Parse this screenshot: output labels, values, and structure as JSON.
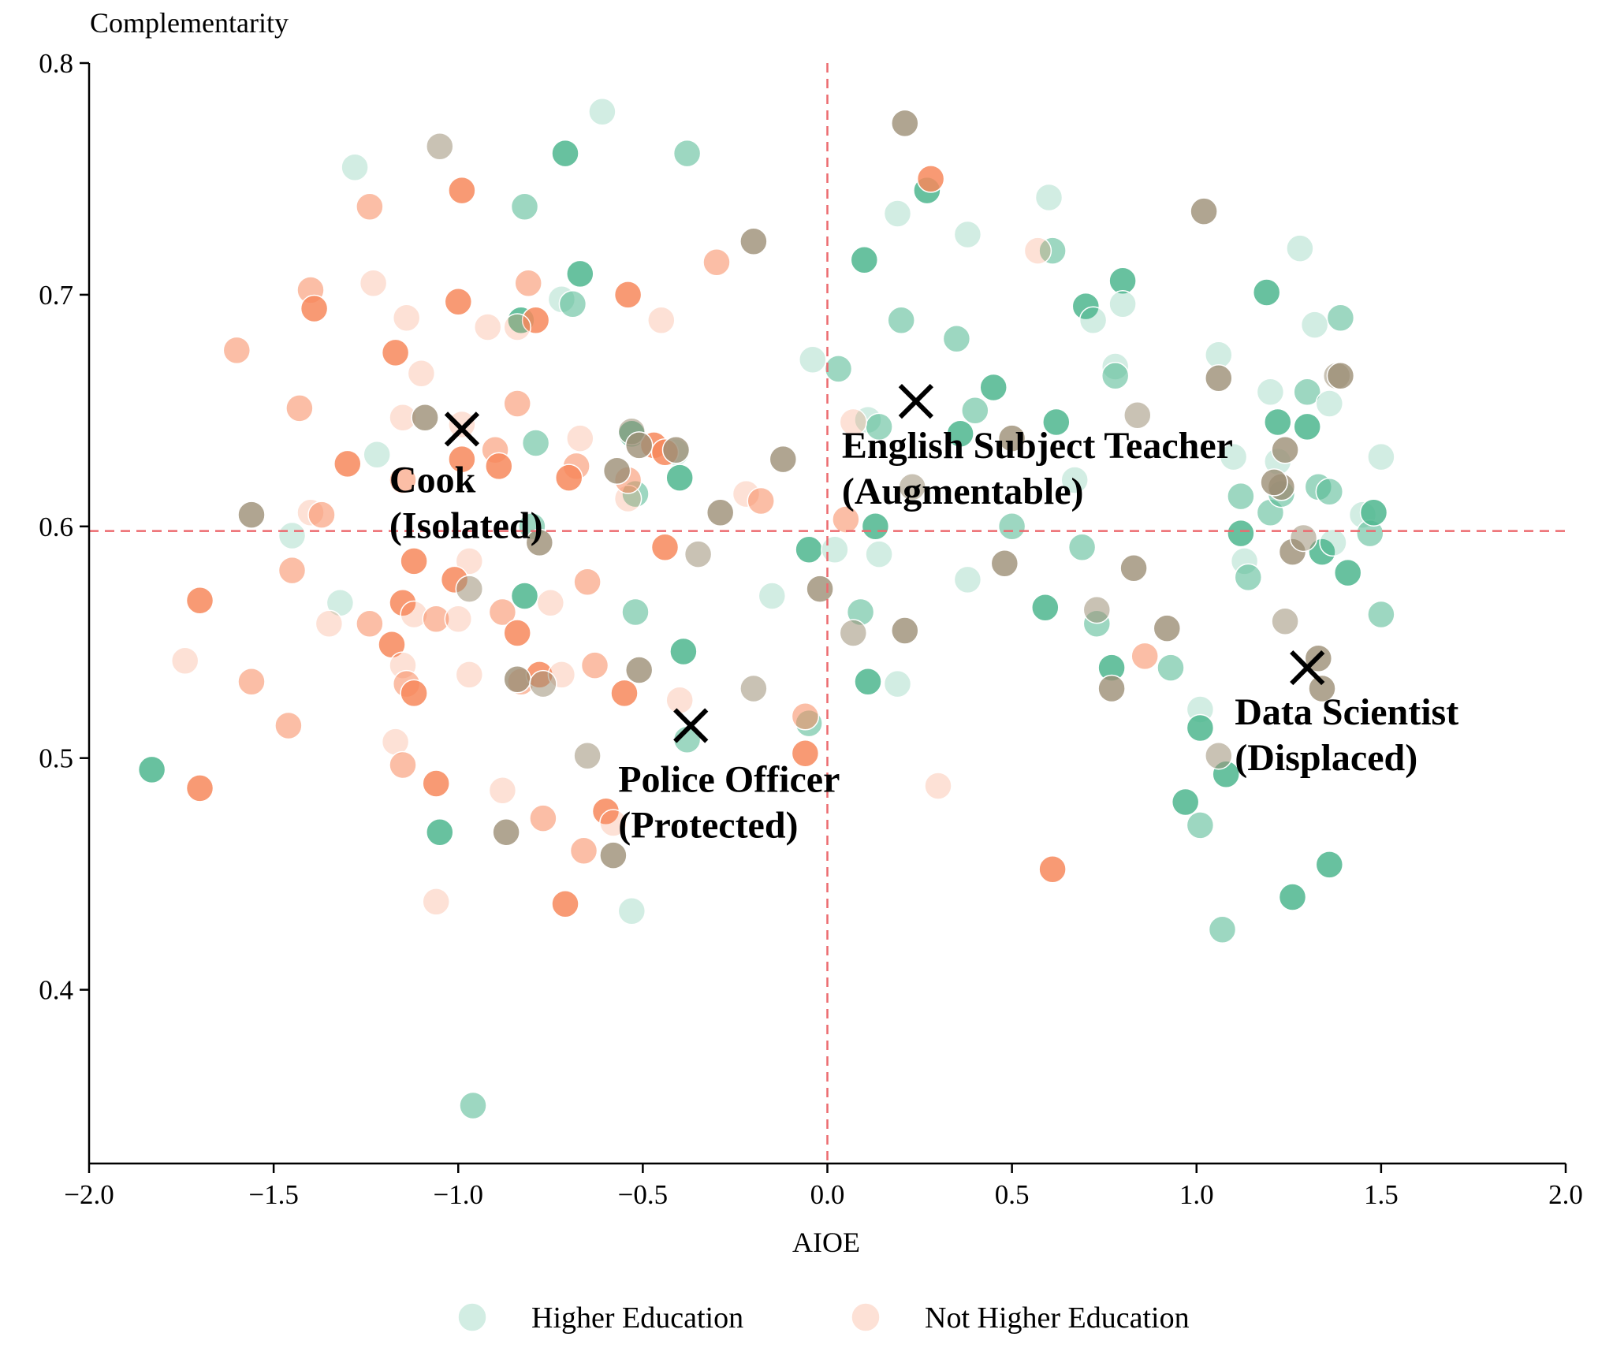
{
  "chart_data": {
    "type": "scatter",
    "title": "",
    "xlabel": "AIOE",
    "ylabel": "Complementarity",
    "xlim": [
      -2.0,
      2.0
    ],
    "ylim": [
      0.325,
      0.8
    ],
    "x_ticks": [
      -2.0,
      -1.5,
      -1.0,
      -0.5,
      0.0,
      0.5,
      1.0,
      1.5,
      2.0
    ],
    "x_tick_labels": [
      "−2.0",
      "−1.5",
      "−1.0",
      "−0.5",
      "0.0",
      "0.5",
      "1.0",
      "1.5",
      "2.0"
    ],
    "y_ticks": [
      0.4,
      0.5,
      0.6,
      0.7,
      0.8
    ],
    "y_tick_labels": [
      "0.4",
      "0.5",
      "0.6",
      "0.7",
      "0.8"
    ],
    "grid": false,
    "legend_position": "bottom-center",
    "reference_lines": {
      "x": 0.0,
      "y": 0.598,
      "color": "#ec6a6f",
      "style": "dashed"
    },
    "colors": {
      "higher": "#4db68e",
      "not_higher": "#f7885c",
      "edge": "#ffffff",
      "marker": "#000000",
      "axis": "#000000"
    },
    "series": [
      {
        "name": "Higher Education",
        "key": "higher",
        "points": [
          [
            -1.28,
            0.755
          ],
          [
            -0.82,
            0.738
          ],
          [
            -0.71,
            0.761
          ],
          [
            -0.61,
            0.779
          ],
          [
            -0.38,
            0.761
          ],
          [
            -0.67,
            0.709
          ],
          [
            -0.72,
            0.698
          ],
          [
            -0.69,
            0.696
          ],
          [
            -0.83,
            0.689
          ],
          [
            -1.22,
            0.631
          ],
          [
            -0.79,
            0.636
          ],
          [
            -0.53,
            0.64
          ],
          [
            -0.41,
            0.632
          ],
          [
            -0.52,
            0.614
          ],
          [
            -0.4,
            0.621
          ],
          [
            -1.45,
            0.596
          ],
          [
            -0.8,
            0.6
          ],
          [
            -0.82,
            0.57
          ],
          [
            -1.32,
            0.567
          ],
          [
            -0.52,
            0.563
          ],
          [
            -0.39,
            0.546
          ],
          [
            -0.15,
            0.57
          ],
          [
            -0.05,
            0.515
          ],
          [
            -0.05,
            0.59
          ],
          [
            0.02,
            0.59
          ],
          [
            -0.38,
            0.508
          ],
          [
            -1.05,
            0.468
          ],
          [
            -0.53,
            0.434
          ],
          [
            -0.96,
            0.35
          ],
          [
            -1.83,
            0.495
          ],
          [
            -0.04,
            0.672
          ],
          [
            0.03,
            0.668
          ],
          [
            0.1,
            0.715
          ],
          [
            0.19,
            0.735
          ],
          [
            0.2,
            0.689
          ],
          [
            0.27,
            0.745
          ],
          [
            0.11,
            0.646
          ],
          [
            0.14,
            0.643
          ],
          [
            0.13,
            0.6
          ],
          [
            0.14,
            0.588
          ],
          [
            0.09,
            0.563
          ],
          [
            0.11,
            0.533
          ],
          [
            0.19,
            0.532
          ],
          [
            0.35,
            0.681
          ],
          [
            0.36,
            0.64
          ],
          [
            0.38,
            0.726
          ],
          [
            0.4,
            0.65
          ],
          [
            0.45,
            0.66
          ],
          [
            0.38,
            0.577
          ],
          [
            0.5,
            0.6
          ],
          [
            0.59,
            0.565
          ],
          [
            0.6,
            0.742
          ],
          [
            0.61,
            0.719
          ],
          [
            0.62,
            0.645
          ],
          [
            0.67,
            0.62
          ],
          [
            0.69,
            0.591
          ],
          [
            0.7,
            0.695
          ],
          [
            0.72,
            0.689
          ],
          [
            0.73,
            0.558
          ],
          [
            0.77,
            0.539
          ],
          [
            0.78,
            0.669
          ],
          [
            0.78,
            0.665
          ],
          [
            0.8,
            0.706
          ],
          [
            0.8,
            0.696
          ],
          [
            0.93,
            0.539
          ],
          [
            0.97,
            0.481
          ],
          [
            1.01,
            0.521
          ],
          [
            1.01,
            0.471
          ],
          [
            1.01,
            0.513
          ],
          [
            1.06,
            0.674
          ],
          [
            1.07,
            0.426
          ],
          [
            1.08,
            0.493
          ],
          [
            1.1,
            0.63
          ],
          [
            1.12,
            0.613
          ],
          [
            1.12,
            0.597
          ],
          [
            1.13,
            0.585
          ],
          [
            1.14,
            0.578
          ],
          [
            1.19,
            0.701
          ],
          [
            1.2,
            0.658
          ],
          [
            1.2,
            0.606
          ],
          [
            1.22,
            0.645
          ],
          [
            1.22,
            0.628
          ],
          [
            1.23,
            0.614
          ],
          [
            1.26,
            0.44
          ],
          [
            1.28,
            0.72
          ],
          [
            1.3,
            0.658
          ],
          [
            1.3,
            0.643
          ],
          [
            1.32,
            0.687
          ],
          [
            1.33,
            0.617
          ],
          [
            1.34,
            0.589
          ],
          [
            1.36,
            0.653
          ],
          [
            1.36,
            0.615
          ],
          [
            1.36,
            0.454
          ],
          [
            1.37,
            0.593
          ],
          [
            1.39,
            0.69
          ],
          [
            1.41,
            0.58
          ],
          [
            1.45,
            0.605
          ],
          [
            1.47,
            0.597
          ],
          [
            1.48,
            0.606
          ],
          [
            1.5,
            0.63
          ],
          [
            1.5,
            0.562
          ]
        ]
      },
      {
        "name": "Not Higher Education",
        "key": "not_higher",
        "points": [
          [
            -1.24,
            0.738
          ],
          [
            -0.99,
            0.745
          ],
          [
            -1.23,
            0.705
          ],
          [
            -1.4,
            0.702
          ],
          [
            -1.39,
            0.694
          ],
          [
            -1.14,
            0.69
          ],
          [
            -1.6,
            0.676
          ],
          [
            -1.17,
            0.675
          ],
          [
            -1.1,
            0.666
          ],
          [
            -1.43,
            0.651
          ],
          [
            -1.0,
            0.697
          ],
          [
            -0.92,
            0.686
          ],
          [
            -0.81,
            0.705
          ],
          [
            -0.79,
            0.689
          ],
          [
            -0.84,
            0.686
          ],
          [
            -0.84,
            0.653
          ],
          [
            -0.54,
            0.7
          ],
          [
            -0.45,
            0.689
          ],
          [
            -0.3,
            0.714
          ],
          [
            -1.3,
            0.627
          ],
          [
            -1.15,
            0.647
          ],
          [
            -1.15,
            0.62
          ],
          [
            -0.99,
            0.629
          ],
          [
            -0.99,
            0.644
          ],
          [
            -0.9,
            0.633
          ],
          [
            -0.89,
            0.626
          ],
          [
            -0.67,
            0.638
          ],
          [
            -0.68,
            0.626
          ],
          [
            -0.7,
            0.621
          ],
          [
            -0.54,
            0.612
          ],
          [
            -0.54,
            0.62
          ],
          [
            -0.47,
            0.635
          ],
          [
            -0.22,
            0.614
          ],
          [
            -0.18,
            0.611
          ],
          [
            -0.44,
            0.632
          ],
          [
            -1.4,
            0.606
          ],
          [
            -1.37,
            0.605
          ],
          [
            -1.12,
            0.585
          ],
          [
            -0.97,
            0.585
          ],
          [
            -1.45,
            0.581
          ],
          [
            -1.7,
            0.568
          ],
          [
            -1.35,
            0.558
          ],
          [
            -1.24,
            0.558
          ],
          [
            -1.15,
            0.567
          ],
          [
            -1.12,
            0.562
          ],
          [
            -1.06,
            0.56
          ],
          [
            -1.01,
            0.577
          ],
          [
            -1.0,
            0.56
          ],
          [
            -0.88,
            0.563
          ],
          [
            -0.84,
            0.554
          ],
          [
            -0.75,
            0.567
          ],
          [
            -0.65,
            0.576
          ],
          [
            -0.44,
            0.591
          ],
          [
            -1.74,
            0.542
          ],
          [
            -1.56,
            0.533
          ],
          [
            -1.18,
            0.549
          ],
          [
            -1.15,
            0.54
          ],
          [
            -1.14,
            0.532
          ],
          [
            -1.12,
            0.528
          ],
          [
            -0.97,
            0.536
          ],
          [
            -0.83,
            0.533
          ],
          [
            -0.78,
            0.536
          ],
          [
            -0.72,
            0.536
          ],
          [
            -0.63,
            0.54
          ],
          [
            -0.55,
            0.528
          ],
          [
            -0.4,
            0.525
          ],
          [
            -1.46,
            0.514
          ],
          [
            -1.7,
            0.487
          ],
          [
            -1.17,
            0.507
          ],
          [
            -1.15,
            0.497
          ],
          [
            -1.06,
            0.489
          ],
          [
            -0.88,
            0.486
          ],
          [
            -0.77,
            0.474
          ],
          [
            -0.6,
            0.477
          ],
          [
            -0.58,
            0.472
          ],
          [
            -0.66,
            0.46
          ],
          [
            -0.71,
            0.437
          ],
          [
            -1.06,
            0.438
          ],
          [
            -0.06,
            0.518
          ],
          [
            -0.06,
            0.502
          ],
          [
            0.07,
            0.645
          ],
          [
            0.05,
            0.603
          ],
          [
            0.28,
            0.75
          ],
          [
            0.3,
            0.488
          ],
          [
            0.86,
            0.544
          ],
          [
            0.61,
            0.452
          ],
          [
            0.57,
            0.719
          ]
        ]
      },
      {
        "name": "",
        "key": "overlap",
        "points": [
          [
            -1.05,
            0.764
          ],
          [
            -1.56,
            0.605
          ],
          [
            -1.09,
            0.647
          ],
          [
            -0.97,
            0.573
          ],
          [
            -0.84,
            0.534
          ],
          [
            -0.87,
            0.468
          ],
          [
            -0.77,
            0.532
          ],
          [
            -0.78,
            0.593
          ],
          [
            -0.57,
            0.624
          ],
          [
            -0.53,
            0.641
          ],
          [
            -0.51,
            0.635
          ],
          [
            -0.41,
            0.633
          ],
          [
            -0.35,
            0.588
          ],
          [
            -0.29,
            0.606
          ],
          [
            -0.2,
            0.723
          ],
          [
            -0.2,
            0.53
          ],
          [
            -0.12,
            0.629
          ],
          [
            -0.51,
            0.538
          ],
          [
            -0.65,
            0.501
          ],
          [
            -0.58,
            0.458
          ],
          [
            -0.02,
            0.573
          ],
          [
            0.07,
            0.554
          ],
          [
            0.21,
            0.774
          ],
          [
            0.21,
            0.555
          ],
          [
            0.23,
            0.617
          ],
          [
            0.5,
            0.638
          ],
          [
            0.48,
            0.584
          ],
          [
            0.73,
            0.564
          ],
          [
            0.77,
            0.53
          ],
          [
            0.83,
            0.582
          ],
          [
            0.84,
            0.648
          ],
          [
            0.92,
            0.556
          ],
          [
            1.02,
            0.736
          ],
          [
            1.06,
            0.501
          ],
          [
            1.06,
            0.664
          ],
          [
            1.23,
            0.617
          ],
          [
            1.24,
            0.559
          ],
          [
            1.24,
            0.633
          ],
          [
            1.26,
            0.589
          ],
          [
            1.29,
            0.595
          ],
          [
            1.33,
            0.543
          ],
          [
            1.34,
            0.53
          ],
          [
            1.38,
            0.665
          ],
          [
            1.39,
            0.665
          ],
          [
            1.21,
            0.619
          ]
        ]
      }
    ],
    "annotations": [
      {
        "label": "Cook",
        "category": "(Isolated)",
        "x": -0.99,
        "y": 0.642
      },
      {
        "label": "English Subject Teacher",
        "category": "(Augmentable)",
        "x": 0.24,
        "y": 0.654
      },
      {
        "label": "Police Officer",
        "category": "(Protected)",
        "x": -0.37,
        "y": 0.514
      },
      {
        "label": "Data Scientist",
        "category": "(Displaced)",
        "x": 1.3,
        "y": 0.539
      }
    ],
    "legend": [
      {
        "label": "Higher Education",
        "key": "higher"
      },
      {
        "label": "Not Higher Education",
        "key": "not_higher"
      }
    ]
  }
}
